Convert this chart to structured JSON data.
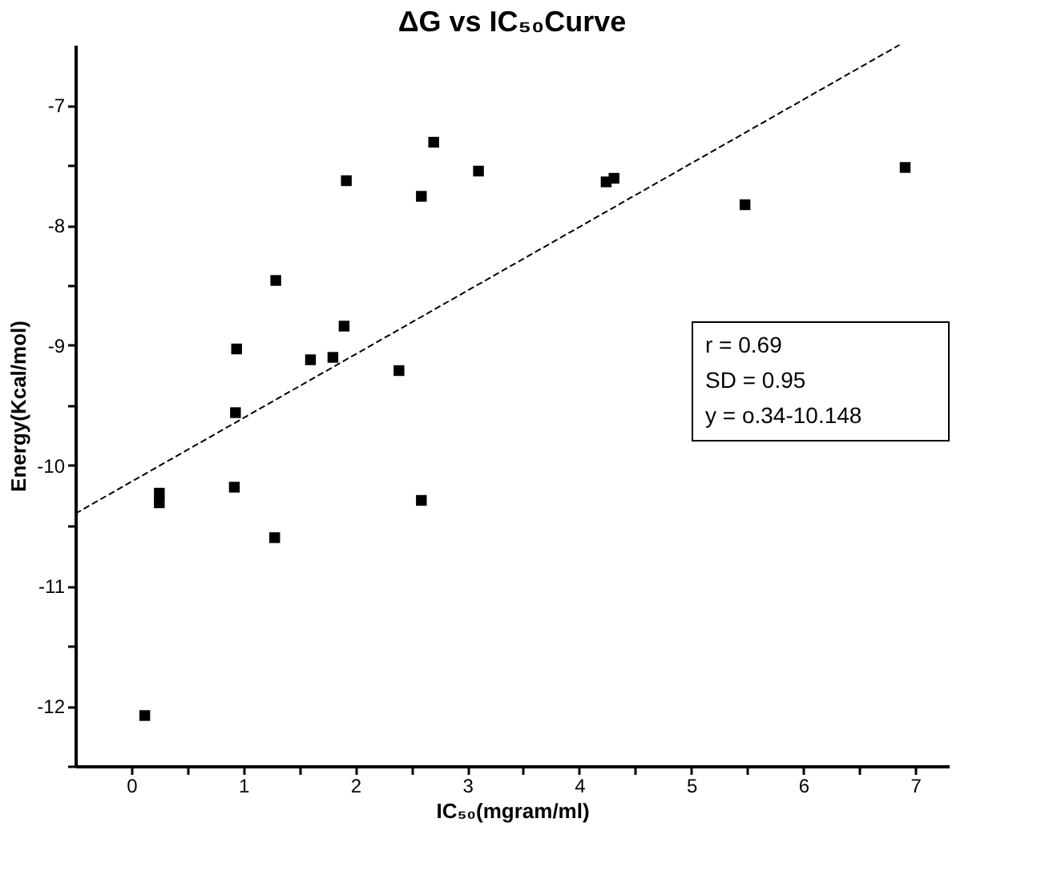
{
  "chart_data": {
    "type": "scatter",
    "title": "ΔG vs IC₅₀Curve",
    "xlabel": "IC₅₀(mgram/ml)",
    "ylabel": "Energy(Kcal/mol)",
    "xlim": [
      -0.5,
      7.3
    ],
    "ylim": [
      -12.5,
      -6.5
    ],
    "xticks": [
      0,
      {
        "value": 0.5,
        "label": null
      },
      1,
      {
        "value": 1.5,
        "label": null
      },
      2,
      {
        "value": 2.5,
        "label": null
      },
      3,
      {
        "value": 3.5,
        "label": null
      },
      4,
      {
        "value": 4.5,
        "label": null
      },
      5,
      {
        "value": 5.5,
        "label": null
      },
      6,
      {
        "value": 6.5,
        "label": null
      },
      7
    ],
    "yticks": [
      {
        "value": -12.5,
        "label": null
      },
      -12,
      {
        "value": -11.5,
        "label": null
      },
      -11,
      {
        "value": -10.5,
        "label": null
      },
      -10,
      {
        "value": -9.5,
        "label": null
      },
      -9,
      {
        "value": -8.5,
        "label": null
      },
      -8,
      {
        "value": -7.5,
        "label": null
      },
      -7
    ],
    "grid": false,
    "legend": false,
    "marker": "square",
    "series": [
      {
        "color": "#000000",
        "x": [
          2.7,
          1.92,
          2.59,
          3.1,
          1.29,
          1.9,
          0.94,
          1.6,
          1.8,
          2.39,
          0.93,
          4.24,
          4.31,
          5.48,
          6.91,
          0.25,
          0.25,
          0.92,
          1.28,
          2.59,
          0.12
        ],
        "values": [
          -7.31,
          -7.63,
          -7.76,
          -7.55,
          -8.46,
          -8.84,
          -9.03,
          -9.12,
          -9.1,
          -9.21,
          -9.56,
          -7.64,
          -7.61,
          -7.83,
          -7.52,
          -10.23,
          -10.31,
          -10.18,
          -10.6,
          -10.29,
          -12.08
        ]
      },
      {
        "type": "line",
        "color": "#000000",
        "line_style": "dashed",
        "marker": "none",
        "x": [
          -0.5,
          6.86
        ],
        "values": [
          -10.4,
          -6.5
        ]
      }
    ],
    "annotations": [
      "r = 0.69",
      "SD = 0.95",
      "y = o.34-10.148"
    ]
  }
}
